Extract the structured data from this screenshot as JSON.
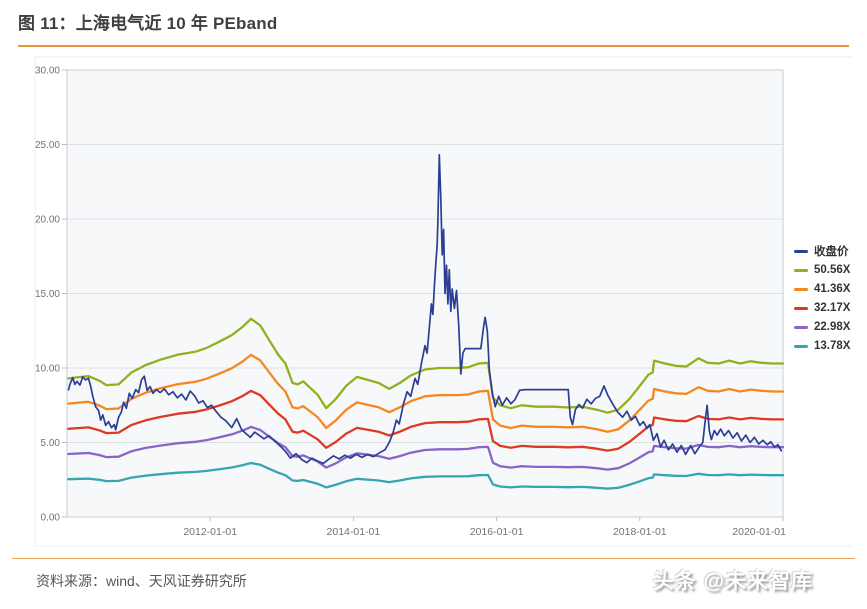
{
  "title": "图 11：上海电气近 10 年 PEband",
  "source_note": "资料来源：wind、天风证券研究所",
  "watermark": "头条 @未来智库",
  "accents": {
    "title_rule": "#e8953a",
    "footer_rule": "#eda45c"
  },
  "chart_data": {
    "type": "line",
    "title": "上海电气近 10 年 PEband",
    "legend_position": "right",
    "x_axis": {
      "range_years": [
        2010.0,
        2020.0
      ],
      "tick_years": [
        2012,
        2014,
        2016,
        2018,
        2020
      ],
      "tick_labels": [
        "2012-01-01",
        "2014-01-01",
        "2016-01-01",
        "2018-01-01",
        "2020-01-01"
      ]
    },
    "y_axis": {
      "range": [
        0,
        30
      ],
      "tick_values": [
        0,
        5,
        10,
        15,
        20,
        25,
        30
      ],
      "tick_labels": [
        "0.00",
        "5.00",
        "10.00",
        "15.00",
        "20.00",
        "25.00",
        "30.00"
      ],
      "grid": true
    },
    "close_price": {
      "name": "收盘价",
      "color": "#2c3f94",
      "points": [
        [
          2010.02,
          8.5
        ],
        [
          2010.04,
          8.9
        ],
        [
          2010.08,
          9.35
        ],
        [
          2010.11,
          8.9
        ],
        [
          2010.14,
          9.1
        ],
        [
          2010.18,
          8.85
        ],
        [
          2010.22,
          9.4
        ],
        [
          2010.26,
          9.2
        ],
        [
          2010.3,
          9.3
        ],
        [
          2010.33,
          8.8
        ],
        [
          2010.36,
          8.1
        ],
        [
          2010.4,
          7.4
        ],
        [
          2010.44,
          7.15
        ],
        [
          2010.47,
          6.5
        ],
        [
          2010.5,
          6.85
        ],
        [
          2010.54,
          6.15
        ],
        [
          2010.58,
          6.4
        ],
        [
          2010.62,
          6.0
        ],
        [
          2010.66,
          6.2
        ],
        [
          2010.68,
          5.85
        ],
        [
          2010.72,
          6.7
        ],
        [
          2010.76,
          7.05
        ],
        [
          2010.79,
          7.7
        ],
        [
          2010.83,
          7.3
        ],
        [
          2010.87,
          8.3
        ],
        [
          2010.91,
          7.95
        ],
        [
          2010.96,
          8.55
        ],
        [
          2011.0,
          8.35
        ],
        [
          2011.04,
          9.2
        ],
        [
          2011.08,
          9.45
        ],
        [
          2011.12,
          8.5
        ],
        [
          2011.16,
          8.75
        ],
        [
          2011.2,
          8.3
        ],
        [
          2011.25,
          8.55
        ],
        [
          2011.3,
          8.35
        ],
        [
          2011.36,
          8.6
        ],
        [
          2011.42,
          8.2
        ],
        [
          2011.48,
          8.4
        ],
        [
          2011.54,
          8.0
        ],
        [
          2011.6,
          8.25
        ],
        [
          2011.66,
          7.85
        ],
        [
          2011.72,
          8.45
        ],
        [
          2011.78,
          8.15
        ],
        [
          2011.84,
          7.65
        ],
        [
          2011.9,
          7.8
        ],
        [
          2011.96,
          7.35
        ],
        [
          2012.02,
          7.5
        ],
        [
          2012.08,
          7.1
        ],
        [
          2012.15,
          6.7
        ],
        [
          2012.22,
          6.45
        ],
        [
          2012.3,
          6.0
        ],
        [
          2012.37,
          6.6
        ],
        [
          2012.44,
          5.85
        ],
        [
          2012.5,
          5.6
        ],
        [
          2012.56,
          5.35
        ],
        [
          2012.62,
          5.7
        ],
        [
          2012.68,
          5.5
        ],
        [
          2012.75,
          5.25
        ],
        [
          2012.82,
          5.45
        ],
        [
          2012.9,
          5.1
        ],
        [
          2012.98,
          4.75
        ],
        [
          2013.05,
          4.4
        ],
        [
          2013.12,
          3.95
        ],
        [
          2013.2,
          4.25
        ],
        [
          2013.28,
          3.85
        ],
        [
          2013.35,
          3.65
        ],
        [
          2013.42,
          3.95
        ],
        [
          2013.5,
          3.75
        ],
        [
          2013.58,
          3.6
        ],
        [
          2013.65,
          3.85
        ],
        [
          2013.72,
          4.1
        ],
        [
          2013.8,
          3.9
        ],
        [
          2013.88,
          4.15
        ],
        [
          2013.96,
          3.95
        ],
        [
          2014.04,
          4.2
        ],
        [
          2014.12,
          4.0
        ],
        [
          2014.2,
          4.2
        ],
        [
          2014.28,
          4.05
        ],
        [
          2014.36,
          4.3
        ],
        [
          2014.44,
          4.5
        ],
        [
          2014.5,
          5.0
        ],
        [
          2014.55,
          5.6
        ],
        [
          2014.6,
          6.5
        ],
        [
          2014.64,
          6.25
        ],
        [
          2014.7,
          7.6
        ],
        [
          2014.75,
          8.4
        ],
        [
          2014.8,
          8.1
        ],
        [
          2014.86,
          9.3
        ],
        [
          2014.9,
          8.9
        ],
        [
          2014.95,
          10.3
        ],
        [
          2015.0,
          11.5
        ],
        [
          2015.03,
          11.0
        ],
        [
          2015.06,
          12.7
        ],
        [
          2015.09,
          14.3
        ],
        [
          2015.11,
          13.6
        ],
        [
          2015.13,
          15.4
        ],
        [
          2015.15,
          16.9
        ],
        [
          2015.17,
          18.3
        ],
        [
          2015.18,
          19.9
        ],
        [
          2015.2,
          24.3
        ],
        [
          2015.22,
          21.4
        ],
        [
          2015.24,
          17.6
        ],
        [
          2015.26,
          19.3
        ],
        [
          2015.28,
          15.0
        ],
        [
          2015.3,
          16.9
        ],
        [
          2015.32,
          14.3
        ],
        [
          2015.34,
          16.6
        ],
        [
          2015.36,
          13.8
        ],
        [
          2015.38,
          15.3
        ],
        [
          2015.41,
          14.0
        ],
        [
          2015.44,
          15.2
        ],
        [
          2015.47,
          12.9
        ],
        [
          2015.5,
          9.6
        ],
        [
          2015.53,
          11.0
        ],
        [
          2015.56,
          11.3
        ],
        [
          2015.62,
          11.3
        ],
        [
          2015.7,
          11.3
        ],
        [
          2015.78,
          11.3
        ],
        [
          2015.82,
          12.8
        ],
        [
          2015.84,
          13.4
        ],
        [
          2015.87,
          12.5
        ],
        [
          2015.9,
          9.8
        ],
        [
          2015.94,
          8.3
        ],
        [
          2015.98,
          7.4
        ],
        [
          2016.03,
          8.1
        ],
        [
          2016.08,
          7.5
        ],
        [
          2016.14,
          8.0
        ],
        [
          2016.2,
          7.6
        ],
        [
          2016.26,
          7.9
        ],
        [
          2016.32,
          8.5
        ],
        [
          2016.4,
          8.55
        ],
        [
          2016.6,
          8.55
        ],
        [
          2016.8,
          8.55
        ],
        [
          2017.0,
          8.55
        ],
        [
          2017.03,
          6.7
        ],
        [
          2017.06,
          6.2
        ],
        [
          2017.1,
          7.2
        ],
        [
          2017.15,
          7.55
        ],
        [
          2017.2,
          7.3
        ],
        [
          2017.26,
          7.9
        ],
        [
          2017.32,
          7.6
        ],
        [
          2017.38,
          7.95
        ],
        [
          2017.44,
          8.1
        ],
        [
          2017.5,
          8.8
        ],
        [
          2017.55,
          8.2
        ],
        [
          2017.62,
          7.6
        ],
        [
          2017.69,
          7.05
        ],
        [
          2017.76,
          6.7
        ],
        [
          2017.82,
          7.1
        ],
        [
          2017.88,
          6.5
        ],
        [
          2017.94,
          6.75
        ],
        [
          2018.0,
          6.15
        ],
        [
          2018.05,
          6.4
        ],
        [
          2018.1,
          5.95
        ],
        [
          2018.14,
          6.2
        ],
        [
          2018.19,
          5.15
        ],
        [
          2018.24,
          5.6
        ],
        [
          2018.29,
          4.7
        ],
        [
          2018.34,
          5.15
        ],
        [
          2018.4,
          4.5
        ],
        [
          2018.46,
          4.9
        ],
        [
          2018.52,
          4.35
        ],
        [
          2018.58,
          4.8
        ],
        [
          2018.64,
          4.2
        ],
        [
          2018.71,
          4.8
        ],
        [
          2018.77,
          4.25
        ],
        [
          2018.83,
          4.7
        ],
        [
          2018.88,
          5.0
        ],
        [
          2018.91,
          6.35
        ],
        [
          2018.94,
          7.5
        ],
        [
          2018.97,
          5.8
        ],
        [
          2019.0,
          5.2
        ],
        [
          2019.04,
          5.8
        ],
        [
          2019.08,
          5.5
        ],
        [
          2019.13,
          5.9
        ],
        [
          2019.18,
          5.45
        ],
        [
          2019.24,
          5.8
        ],
        [
          2019.3,
          5.3
        ],
        [
          2019.36,
          5.65
        ],
        [
          2019.42,
          5.1
        ],
        [
          2019.48,
          5.5
        ],
        [
          2019.54,
          5.0
        ],
        [
          2019.6,
          5.35
        ],
        [
          2019.66,
          4.9
        ],
        [
          2019.72,
          5.15
        ],
        [
          2019.78,
          4.85
        ],
        [
          2019.83,
          5.05
        ],
        [
          2019.88,
          4.7
        ],
        [
          2019.93,
          4.85
        ],
        [
          2019.98,
          4.4
        ]
      ]
    },
    "pe_bands": {
      "reference_multiple": 50.56,
      "reference_points": [
        [
          2010.02,
          9.3
        ],
        [
          2010.2,
          9.4
        ],
        [
          2010.3,
          9.45
        ],
        [
          2010.45,
          9.15
        ],
        [
          2010.55,
          8.85
        ],
        [
          2010.72,
          8.9
        ],
        [
          2010.9,
          9.7
        ],
        [
          2011.1,
          10.2
        ],
        [
          2011.3,
          10.55
        ],
        [
          2011.55,
          10.9
        ],
        [
          2011.8,
          11.1
        ],
        [
          2011.95,
          11.35
        ],
        [
          2012.1,
          11.7
        ],
        [
          2012.3,
          12.2
        ],
        [
          2012.45,
          12.75
        ],
        [
          2012.57,
          13.3
        ],
        [
          2012.7,
          12.85
        ],
        [
          2012.82,
          11.9
        ],
        [
          2012.95,
          10.9
        ],
        [
          2013.05,
          10.3
        ],
        [
          2013.15,
          9.0
        ],
        [
          2013.22,
          8.9
        ],
        [
          2013.3,
          9.1
        ],
        [
          2013.5,
          8.2
        ],
        [
          2013.62,
          7.3
        ],
        [
          2013.75,
          7.9
        ],
        [
          2013.9,
          8.8
        ],
        [
          2014.05,
          9.4
        ],
        [
          2014.2,
          9.2
        ],
        [
          2014.35,
          9.0
        ],
        [
          2014.5,
          8.6
        ],
        [
          2014.65,
          9.0
        ],
        [
          2014.8,
          9.5
        ],
        [
          2015.0,
          9.9
        ],
        [
          2015.2,
          10.0
        ],
        [
          2015.45,
          10.0
        ],
        [
          2015.6,
          10.05
        ],
        [
          2015.75,
          10.3
        ],
        [
          2015.88,
          10.35
        ],
        [
          2015.95,
          8.0
        ],
        [
          2016.05,
          7.5
        ],
        [
          2016.2,
          7.3
        ],
        [
          2016.35,
          7.5
        ],
        [
          2016.55,
          7.4
        ],
        [
          2016.8,
          7.4
        ],
        [
          2017.0,
          7.35
        ],
        [
          2017.2,
          7.4
        ],
        [
          2017.4,
          7.2
        ],
        [
          2017.55,
          7.0
        ],
        [
          2017.7,
          7.2
        ],
        [
          2017.85,
          7.9
        ],
        [
          2018.0,
          8.8
        ],
        [
          2018.12,
          9.55
        ],
        [
          2018.18,
          9.7
        ],
        [
          2018.2,
          10.5
        ],
        [
          2018.35,
          10.3
        ],
        [
          2018.5,
          10.15
        ],
        [
          2018.65,
          10.1
        ],
        [
          2018.82,
          10.65
        ],
        [
          2018.95,
          10.35
        ],
        [
          2019.1,
          10.3
        ],
        [
          2019.25,
          10.5
        ],
        [
          2019.4,
          10.3
        ],
        [
          2019.55,
          10.45
        ],
        [
          2019.7,
          10.35
        ],
        [
          2019.85,
          10.3
        ],
        [
          2020.0,
          10.3
        ]
      ],
      "bands": [
        {
          "name": "50.56X",
          "multiple": 50.56,
          "color": "#93af1e"
        },
        {
          "name": "41.36X",
          "multiple": 41.36,
          "color": "#f5871f"
        },
        {
          "name": "32.17X",
          "multiple": 32.17,
          "color": "#dc3a23"
        },
        {
          "name": "22.98X",
          "multiple": 22.98,
          "color": "#8a64c8"
        },
        {
          "name": "13.78X",
          "multiple": 13.78,
          "color": "#35a5b1"
        }
      ]
    }
  }
}
